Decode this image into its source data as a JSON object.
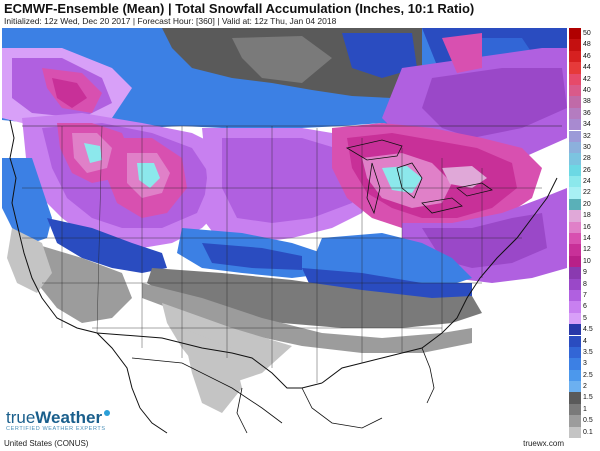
{
  "header": {
    "title": "ECMWF-Ensemble (Mean) | Total Snowfall Accumulation (Inches, 10:1 Ratio)",
    "subtitle": "Initialized: 12z Wed, Dec 20 2017 | Forecast Hour: [360] | Valid at: 12z Thu, Jan 04 2018"
  },
  "footer": {
    "region": "United States (CONUS)",
    "site": "truewx.com"
  },
  "logo": {
    "word_light": "true",
    "word_bold": "Weather",
    "tagline": "CERTIFIED WEATHER EXPERTS"
  },
  "legend": {
    "items": [
      {
        "label": "50",
        "color": "#b00000"
      },
      {
        "label": "48",
        "color": "#c41010"
      },
      {
        "label": "46",
        "color": "#d62020"
      },
      {
        "label": "44",
        "color": "#e63a3a"
      },
      {
        "label": "42",
        "color": "#e64a6a"
      },
      {
        "label": "40",
        "color": "#d95a8a"
      },
      {
        "label": "38",
        "color": "#c06aa8"
      },
      {
        "label": "36",
        "color": "#b47cc0"
      },
      {
        "label": "34",
        "color": "#a88ad0"
      },
      {
        "label": "32",
        "color": "#9c9ad8"
      },
      {
        "label": "30",
        "color": "#8cb0dc"
      },
      {
        "label": "28",
        "color": "#7cc4e0"
      },
      {
        "label": "26",
        "color": "#6cd8e4"
      },
      {
        "label": "24",
        "color": "#8ce8ec"
      },
      {
        "label": "22",
        "color": "#a8f0f4"
      },
      {
        "label": "20",
        "color": "#5ab0b8"
      },
      {
        "label": "18",
        "color": "#e0a8d8"
      },
      {
        "label": "16",
        "color": "#e080c8"
      },
      {
        "label": "14",
        "color": "#d850b0"
      },
      {
        "label": "12",
        "color": "#c83098"
      },
      {
        "label": "10",
        "color": "#b82088"
      },
      {
        "label": "9",
        "color": "#8a3ab0"
      },
      {
        "label": "8",
        "color": "#9a48c8"
      },
      {
        "label": "7",
        "color": "#b060e0"
      },
      {
        "label": "6",
        "color": "#c880f0"
      },
      {
        "label": "5",
        "color": "#d8a0f8"
      },
      {
        "label": "4.5",
        "color": "#2838a8"
      },
      {
        "label": "4",
        "color": "#2a4cc0"
      },
      {
        "label": "3.5",
        "color": "#3266d6"
      },
      {
        "label": "3",
        "color": "#3c80e4"
      },
      {
        "label": "2.5",
        "color": "#4c98ec"
      },
      {
        "label": "2",
        "color": "#6cb0f0"
      },
      {
        "label": "1.5",
        "color": "#5a5a5a"
      },
      {
        "label": "1",
        "color": "#7a7a7a"
      },
      {
        "label": "0.5",
        "color": "#9c9c9c"
      },
      {
        "label": "0.1",
        "color": "#c4c4c4"
      }
    ]
  },
  "colors": {
    "background": "#ffffff",
    "ocean": "#ffffff",
    "border": "#111111"
  }
}
